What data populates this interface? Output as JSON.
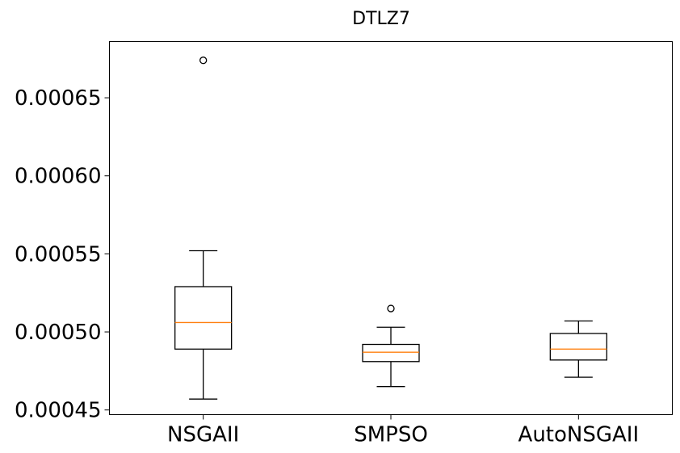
{
  "chart_data": {
    "type": "boxplot",
    "title": "DTLZ7",
    "xlabel": "",
    "ylabel": "",
    "categories": [
      "NSGAII",
      "SMPSO",
      "AutoNSGAII"
    ],
    "ylim": [
      0.000447,
      0.000686
    ],
    "yticks": [
      0.00045,
      0.0005,
      0.00055,
      0.0006,
      0.00065
    ],
    "ytick_labels": [
      "0.00045",
      "0.00050",
      "0.00055",
      "0.00060",
      "0.00065"
    ],
    "grid": false,
    "colors": {
      "box": "#000000",
      "median": "#ff7f0e",
      "background": "#ffffff"
    },
    "series": [
      {
        "category": "NSGAII",
        "whisker_low": 0.000457,
        "q1": 0.000489,
        "median": 0.000506,
        "q3": 0.000529,
        "whisker_high": 0.000552,
        "outliers": [
          0.000674
        ]
      },
      {
        "category": "SMPSO",
        "whisker_low": 0.000465,
        "q1": 0.000481,
        "median": 0.000487,
        "q3": 0.000492,
        "whisker_high": 0.000503,
        "outliers": [
          0.000515
        ]
      },
      {
        "category": "AutoNSGAII",
        "whisker_low": 0.000471,
        "q1": 0.000482,
        "median": 0.000489,
        "q3": 0.000499,
        "whisker_high": 0.000507,
        "outliers": []
      }
    ]
  }
}
